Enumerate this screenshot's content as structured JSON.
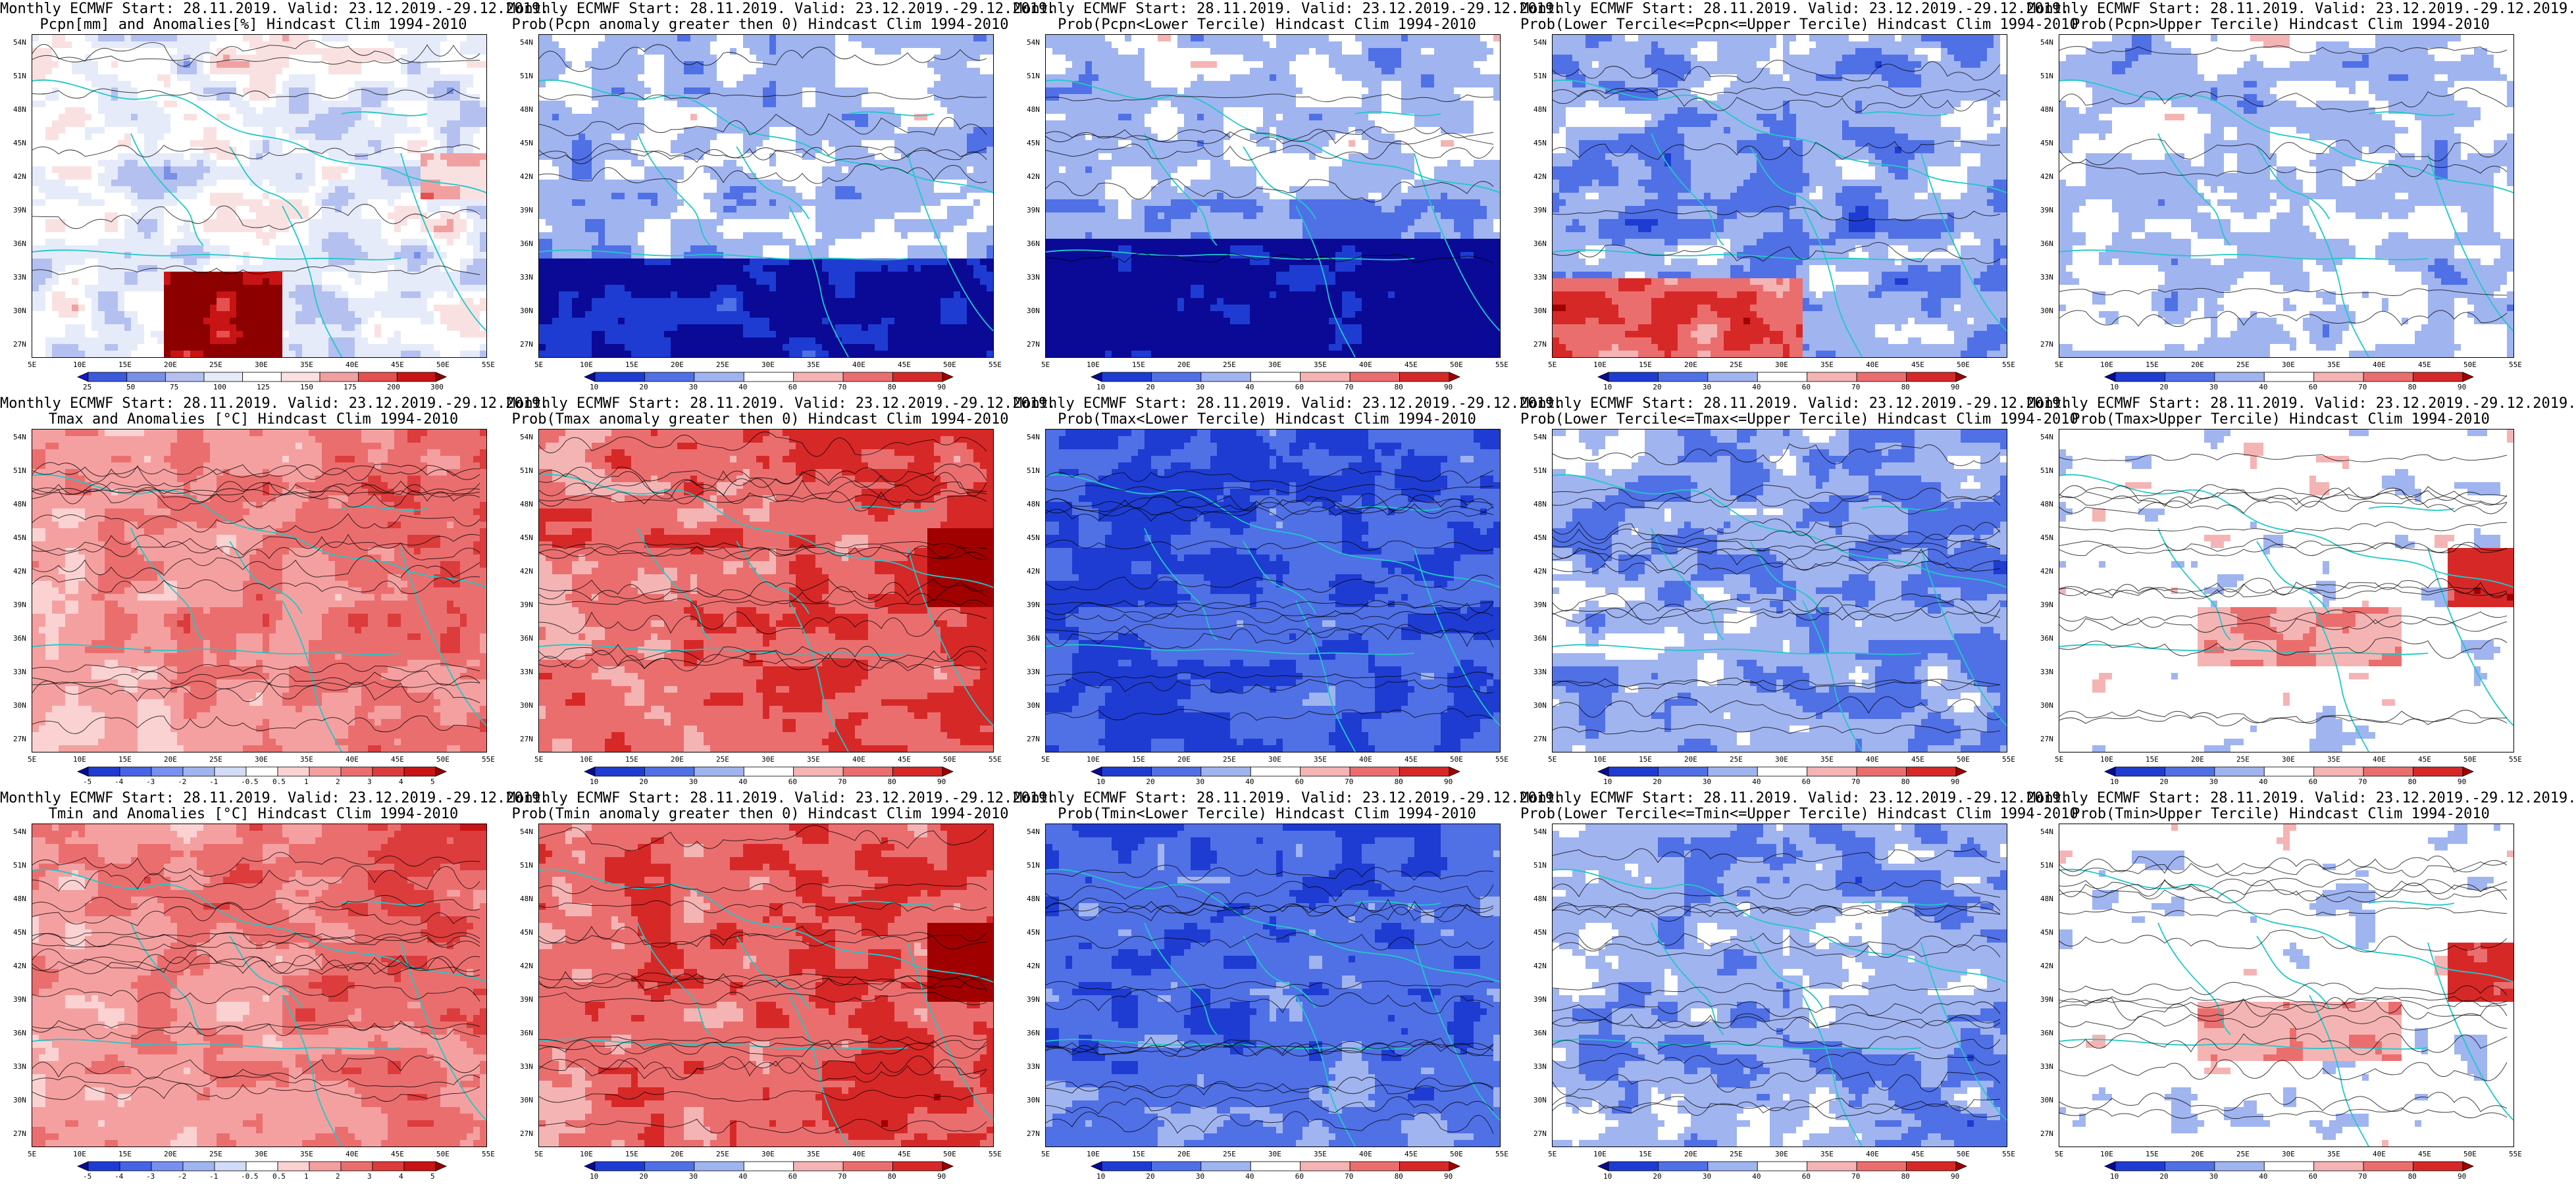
{
  "latitude_labels": [
    "54N",
    "51N",
    "48N",
    "45N",
    "42N",
    "39N",
    "36N",
    "33N",
    "30N",
    "27N"
  ],
  "longitude_labels": [
    "5E",
    "10E",
    "15E",
    "20E",
    "25E",
    "30E",
    "35E",
    "40E",
    "45E",
    "50E",
    "55E"
  ],
  "colorbars": {
    "pcpn_anom": {
      "labels": [
        "25",
        "50",
        "75",
        "100",
        "125",
        "150",
        "175",
        "200",
        "300"
      ],
      "colors": [
        "#1515c8",
        "#3c5adc",
        "#7890e6",
        "#b4c0f0",
        "#e6ebfa",
        "#ffffff",
        "#fae1e1",
        "#f0a0a0",
        "#e65050",
        "#c81414",
        "#8c0000"
      ]
    },
    "prob": {
      "labels": [
        "10",
        "20",
        "30",
        "40",
        "60",
        "70",
        "80",
        "90"
      ],
      "colors": [
        "#0a0a96",
        "#1e3cd2",
        "#5070e6",
        "#a0b4f0",
        "#ffffff",
        "#f5b4b4",
        "#eb6e6e",
        "#d72828",
        "#a00000"
      ]
    },
    "temp": {
      "labels": [
        "-5",
        "-4",
        "-3",
        "-2",
        "-1",
        "-0.5",
        "0.5",
        "1",
        "2",
        "3",
        "4",
        "5"
      ],
      "colors": [
        "#0a0a96",
        "#1e3cd2",
        "#4664e6",
        "#7890f0",
        "#a0b4f0",
        "#d2dcf8",
        "#ffffff",
        "#fad2d2",
        "#f5a0a0",
        "#eb6e6e",
        "#dc3c3c",
        "#c81414",
        "#960000"
      ]
    }
  },
  "panels": [
    {
      "title_line1": "Monthly ECMWF Start: 28.11.2019. Valid: 23.12.2019.-29.12.2019.",
      "title_line2": "Pcpn[mm] and Anomalies[%] Hindcast Clim 1994-2010",
      "colorbar": "pcpn_anom",
      "scheme": "pcp_anom"
    },
    {
      "title_line1": "Monthly ECMWF Start: 28.11.2019. Valid: 23.12.2019.-29.12.2019.",
      "title_line2": "Prob(Pcpn anomaly greater then 0) Hindcast Clim 1994-2010",
      "colorbar": "prob",
      "scheme": "pcp_prob_gt0"
    },
    {
      "title_line1": "Monthly ECMWF Start: 28.11.2019. Valid: 23.12.2019.-29.12.2019.",
      "title_line2": "Prob(Pcpn<Lower Tercile) Hindcast Clim 1994-2010",
      "colorbar": "prob",
      "scheme": "pcp_lower"
    },
    {
      "title_line1": "Monthly ECMWF Start: 28.11.2019. Valid: 23.12.2019.-29.12.2019.",
      "title_line2": "Prob(Lower Tercile<=Pcpn<=Upper Tercile) Hindcast Clim 1994-2010",
      "colorbar": "prob",
      "scheme": "pcp_middle"
    },
    {
      "title_line1": "Monthly ECMWF Start: 28.11.2019. Valid: 23.12.2019.-29.12.2019.",
      "title_line2": "Prob(Pcpn>Upper Tercile) Hindcast Clim 1994-2010",
      "colorbar": "prob",
      "scheme": "pcp_upper"
    },
    {
      "title_line1": "Monthly ECMWF Start: 28.11.2019. Valid: 23.12.2019.-29.12.2019.",
      "title_line2": "Tmax and Anomalies [°C] Hindcast Clim 1994-2010",
      "colorbar": "temp",
      "scheme": "t_anom"
    },
    {
      "title_line1": "Monthly ECMWF Start: 28.11.2019. Valid: 23.12.2019.-29.12.2019.",
      "title_line2": "Prob(Tmax anomaly greater then 0) Hindcast Clim 1994-2010",
      "colorbar": "prob",
      "scheme": "t_prob_gt0"
    },
    {
      "title_line1": "Monthly ECMWF Start: 28.11.2019. Valid: 23.12.2019.-29.12.2019.",
      "title_line2": "Prob(Tmax<Lower Tercile) Hindcast Clim 1994-2010",
      "colorbar": "prob",
      "scheme": "t_lower"
    },
    {
      "title_line1": "Monthly ECMWF Start: 28.11.2019. Valid: 23.12.2019.-29.12.2019.",
      "title_line2": "Prob(Lower Tercile<=Tmax<=Upper Tercile) Hindcast Clim 1994-2010",
      "colorbar": "prob",
      "scheme": "t_middle"
    },
    {
      "title_line1": "Monthly ECMWF Start: 28.11.2019. Valid: 23.12.2019.-29.12.2019.",
      "title_line2": "Prob(Tmax>Upper Tercile) Hindcast Clim 1994-2010",
      "colorbar": "prob",
      "scheme": "t_upper"
    },
    {
      "title_line1": "Monthly ECMWF Start: 28.11.2019. Valid: 23.12.2019.-29.12.2019.",
      "title_line2": "Tmin and Anomalies [°C] Hindcast Clim 1994-2010",
      "colorbar": "temp",
      "scheme": "t_anom"
    },
    {
      "title_line1": "Monthly ECMWF Start: 28.11.2019. Valid: 23.12.2019.-29.12.2019.",
      "title_line2": "Prob(Tmin anomaly greater then 0) Hindcast Clim 1994-2010",
      "colorbar": "prob",
      "scheme": "t_prob_gt0"
    },
    {
      "title_line1": "Monthly ECMWF Start: 28.11.2019. Valid: 23.12.2019.-29.12.2019.",
      "title_line2": "Prob(Tmin<Lower Tercile) Hindcast Clim 1994-2010",
      "colorbar": "prob",
      "scheme": "t_lower_dark"
    },
    {
      "title_line1": "Monthly ECMWF Start: 28.11.2019. Valid: 23.12.2019.-29.12.2019.",
      "title_line2": "Prob(Lower Tercile<=Tmin<=Upper Tercile) Hindcast Clim 1994-2010",
      "colorbar": "prob",
      "scheme": "t_middle"
    },
    {
      "title_line1": "Monthly ECMWF Start: 28.11.2019. Valid: 23.12.2019.-29.12.2019.",
      "title_line2": "Prob(Tmin>Upper Tercile) Hindcast Clim 1994-2010",
      "colorbar": "prob",
      "scheme": "t_upper"
    }
  ],
  "colors": {
    "coastline": "#20c8c8",
    "contour": "#000000",
    "frame": "#000000"
  }
}
